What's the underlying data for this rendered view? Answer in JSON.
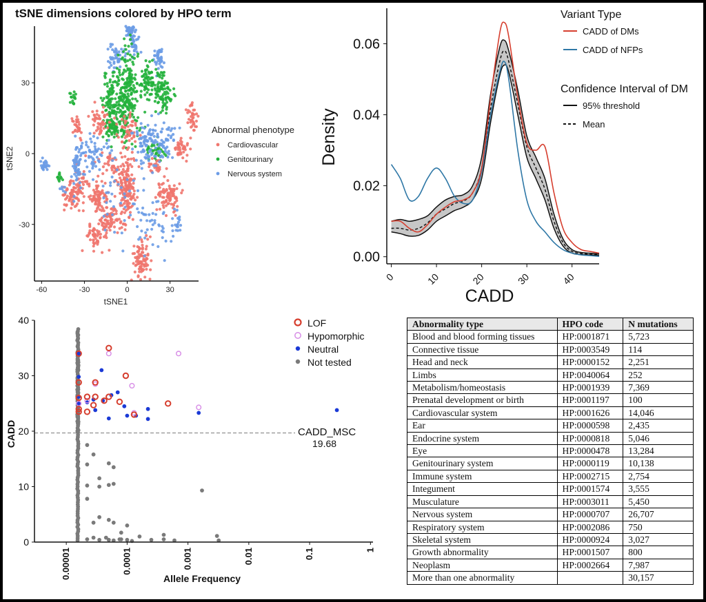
{
  "chart_data": [
    {
      "type": "scatter",
      "title": "tSNE dimensions colored by HPO term",
      "xlabel": "tSNE1",
      "ylabel": "tSNE2",
      "xlim": [
        -65,
        50
      ],
      "ylim": [
        -54,
        54
      ],
      "xticks": [
        "-60",
        "-30",
        "0",
        "30"
      ],
      "yticks": [
        "-30",
        "0",
        "30"
      ],
      "legend": {
        "title": "Abnormal phenotype",
        "position": "right",
        "entries": [
          {
            "name": "Cardiovascular",
            "color": "#f0766e"
          },
          {
            "name": "Genitourinary",
            "color": "#24b13c"
          },
          {
            "name": "Nervous system",
            "color": "#6c9ce6"
          }
        ]
      },
      "clusters": [
        {
          "group": "Nervous system",
          "x": 2,
          "y": 52,
          "sx": 1.5,
          "sy": 2,
          "n": 45
        },
        {
          "group": "Nervous system",
          "x": 5,
          "y": 46,
          "sx": 1.5,
          "sy": 2,
          "n": 30
        },
        {
          "group": "Nervous system",
          "x": -7,
          "y": 40,
          "sx": 3,
          "sy": 2.5,
          "n": 40
        },
        {
          "group": "Nervous system",
          "x": 22,
          "y": 40,
          "sx": 2,
          "sy": 2.5,
          "n": 40
        },
        {
          "group": "Nervous system",
          "x": -12,
          "y": 46,
          "sx": 1,
          "sy": 1,
          "n": 4
        },
        {
          "group": "Genitourinary",
          "x": 0,
          "y": 25,
          "sx": 4,
          "sy": 10,
          "n": 240
        },
        {
          "group": "Genitourinary",
          "x": -11,
          "y": 21,
          "sx": 3,
          "sy": 7,
          "n": 110
        },
        {
          "group": "Genitourinary",
          "x": 14,
          "y": 30,
          "sx": 3,
          "sy": 4,
          "n": 70
        },
        {
          "group": "Genitourinary",
          "x": 25,
          "y": 26,
          "sx": 3.5,
          "sy": 4,
          "n": 90
        },
        {
          "group": "Genitourinary",
          "x": -38,
          "y": 23,
          "sx": 1.2,
          "sy": 1.5,
          "n": 15
        },
        {
          "group": "Genitourinary",
          "x": -10,
          "y": 11,
          "sx": 2.5,
          "sy": 2,
          "n": 40
        },
        {
          "group": "Genitourinary",
          "x": 21,
          "y": 1,
          "sx": 4,
          "sy": 2,
          "n": 40
        },
        {
          "group": "Genitourinary",
          "x": -47,
          "y": -10,
          "sx": 1,
          "sy": 1,
          "n": 12
        },
        {
          "group": "Cardiovascular",
          "x": 0,
          "y": -15,
          "sx": 3,
          "sy": 7,
          "n": 150
        },
        {
          "group": "Cardiovascular",
          "x": -12,
          "y": -28,
          "sx": 4,
          "sy": 4,
          "n": 80
        },
        {
          "group": "Cardiovascular",
          "x": -21,
          "y": -18,
          "sx": 3,
          "sy": 3,
          "n": 70
        },
        {
          "group": "Cardiovascular",
          "x": -38,
          "y": -18,
          "sx": 4,
          "sy": 3,
          "n": 80
        },
        {
          "group": "Cardiovascular",
          "x": -23,
          "y": -35,
          "sx": 3,
          "sy": 2.5,
          "n": 50
        },
        {
          "group": "Cardiovascular",
          "x": 10,
          "y": -45,
          "sx": 3,
          "sy": 4,
          "n": 90
        },
        {
          "group": "Cardiovascular",
          "x": 28,
          "y": -18,
          "sx": 4,
          "sy": 3,
          "n": 90
        },
        {
          "group": "Cardiovascular",
          "x": 38,
          "y": 2,
          "sx": 3,
          "sy": 2,
          "n": 40
        },
        {
          "group": "Cardiovascular",
          "x": 46,
          "y": 15,
          "sx": 2,
          "sy": 3,
          "n": 40
        },
        {
          "group": "Cardiovascular",
          "x": -35,
          "y": 12,
          "sx": 2,
          "sy": 2,
          "n": 30
        },
        {
          "group": "Cardiovascular",
          "x": -20,
          "y": 14,
          "sx": 3,
          "sy": 3,
          "n": 50
        },
        {
          "group": "Cardiovascular",
          "x": 0,
          "y": 10,
          "sx": 4,
          "sy": 3,
          "n": 50
        },
        {
          "group": "Cardiovascular",
          "x": -10,
          "y": -5,
          "sx": 6,
          "sy": 4,
          "n": 50
        },
        {
          "group": "Cardiovascular",
          "x": 20,
          "y": -5,
          "sx": 3,
          "sy": 2,
          "n": 25
        },
        {
          "group": "Cardiovascular",
          "x": -32,
          "y": -10,
          "sx": 3,
          "sy": 3,
          "n": 25
        },
        {
          "group": "Nervous system",
          "x": -58,
          "y": -5,
          "sx": 1.5,
          "sy": 1.5,
          "n": 25
        },
        {
          "group": "Nervous system",
          "x": -35,
          "y": -5,
          "sx": 2,
          "sy": 5,
          "n": 50
        },
        {
          "group": "Nervous system",
          "x": -25,
          "y": 0,
          "sx": 6,
          "sy": 4,
          "n": 70
        },
        {
          "group": "Nervous system",
          "x": 15,
          "y": 5,
          "sx": 5,
          "sy": 5,
          "n": 80
        },
        {
          "group": "Nervous system",
          "x": 25,
          "y": 5,
          "sx": 5,
          "sy": 4,
          "n": 60
        },
        {
          "group": "Nervous system",
          "x": -5,
          "y": -20,
          "sx": 8,
          "sy": 8,
          "n": 40
        },
        {
          "group": "Nervous system",
          "x": 18,
          "y": -30,
          "sx": 6,
          "sy": 6,
          "n": 40
        },
        {
          "group": "Nervous system",
          "x": 35,
          "y": -30,
          "sx": 2,
          "sy": 3,
          "n": 20
        },
        {
          "group": "Nervous system",
          "x": -45,
          "y": -15,
          "sx": 1,
          "sy": 1,
          "n": 6
        }
      ]
    },
    {
      "type": "line",
      "xlabel": "CADD",
      "ylabel": "Density",
      "xlim": [
        -1,
        46
      ],
      "ylim": [
        -0.002,
        0.07
      ],
      "xticks": [
        "0",
        "10",
        "20",
        "30",
        "40"
      ],
      "yticks": [
        "0.00",
        "0.02",
        "0.04",
        "0.06"
      ],
      "legend": {
        "position": "top-right",
        "title": "Variant Type",
        "entries": [
          {
            "name": "CADD of DMs",
            "color": "#d63e2e"
          },
          {
            "name": "CADD of NFPs",
            "color": "#2e77a6"
          }
        ],
        "title2": "Confidence Interval of DM",
        "entries2": [
          {
            "name": "95% threshold",
            "style": "solid"
          },
          {
            "name": "Mean",
            "style": "dashed"
          }
        ]
      },
      "x": [
        0,
        2,
        4,
        6,
        8,
        10,
        12,
        14,
        16,
        18,
        20,
        22,
        24,
        25,
        26,
        28,
        30,
        32,
        34,
        36,
        38,
        40,
        42,
        44,
        46
      ],
      "series": [
        {
          "name": "CADD of DMs",
          "values": [
            0.01,
            0.01,
            0.008,
            0.007,
            0.009,
            0.012,
            0.014,
            0.0155,
            0.016,
            0.018,
            0.025,
            0.045,
            0.063,
            0.066,
            0.062,
            0.045,
            0.032,
            0.03,
            0.031,
            0.018,
            0.008,
            0.004,
            0.002,
            0.0015,
            0.001
          ]
        },
        {
          "name": "CADD of NFPs",
          "values": [
            0.026,
            0.022,
            0.016,
            0.017,
            0.022,
            0.025,
            0.022,
            0.017,
            0.015,
            0.016,
            0.024,
            0.04,
            0.052,
            0.055,
            0.05,
            0.03,
            0.016,
            0.01,
            0.007,
            0.004,
            0.002,
            0.001,
            0.0005,
            0.0003,
            0.0001
          ]
        },
        {
          "name": "95% threshold upper",
          "values": [
            0.01,
            0.0105,
            0.01,
            0.0105,
            0.0115,
            0.014,
            0.016,
            0.017,
            0.0175,
            0.02,
            0.028,
            0.046,
            0.059,
            0.061,
            0.058,
            0.047,
            0.034,
            0.028,
            0.022,
            0.012,
            0.005,
            0.002,
            0.0012,
            0.001,
            0.0008
          ]
        },
        {
          "name": "Mean",
          "values": [
            0.008,
            0.008,
            0.0075,
            0.008,
            0.0095,
            0.012,
            0.0135,
            0.015,
            0.0157,
            0.018,
            0.025,
            0.042,
            0.055,
            0.058,
            0.055,
            0.043,
            0.031,
            0.025,
            0.019,
            0.01,
            0.004,
            0.0015,
            0.0009,
            0.0007,
            0.0005
          ]
        },
        {
          "name": "95% threshold lower",
          "values": [
            0.007,
            0.0065,
            0.0058,
            0.006,
            0.0075,
            0.01,
            0.0115,
            0.013,
            0.014,
            0.016,
            0.022,
            0.038,
            0.051,
            0.054,
            0.052,
            0.04,
            0.028,
            0.022,
            0.016,
            0.008,
            0.003,
            0.001,
            0.0006,
            0.0005,
            0.0004
          ]
        }
      ]
    },
    {
      "type": "scatter",
      "xlabel": "Allele Frequency",
      "ylabel": "CADD",
      "xscale": "log",
      "xlim": [
        3e-06,
        1.1
      ],
      "ylim": [
        0,
        40
      ],
      "xticks": [
        "0.00001",
        "0.0001",
        "0.001",
        "0.01",
        "0.1",
        "1"
      ],
      "yticks": [
        "0",
        "10",
        "20",
        "30",
        "40"
      ],
      "threshold": {
        "value": 19.68,
        "label": "CADD_MSC",
        "value_label": "19.68"
      },
      "legend": {
        "position": "top-right",
        "entries": [
          {
            "name": "LOF",
            "color": "#d63e2e",
            "marker": "ring"
          },
          {
            "name": "Hypomorphic",
            "color": "#d78ce6",
            "marker": "ring"
          },
          {
            "name": "Neutral",
            "color": "#1b3ad6",
            "marker": "dot"
          },
          {
            "name": "Not tested",
            "color": "#7a7a7a",
            "marker": "dot"
          }
        ]
      },
      "series": [
        {
          "name": "LOF",
          "points": [
            [
              1.6e-05,
              34
            ],
            [
              1.6e-05,
              28.8
            ],
            [
              1.6e-05,
              26
            ],
            [
              1.6e-05,
              24
            ],
            [
              1.6e-05,
              23.5
            ],
            [
              2.2e-05,
              26.2
            ],
            [
              2.2e-05,
              23.5
            ],
            [
              2.8e-05,
              24.7
            ],
            [
              3e-05,
              26.2
            ],
            [
              3e-05,
              28.8
            ],
            [
              4.2e-05,
              25.5
            ],
            [
              5e-05,
              35
            ],
            [
              5e-05,
              26.2
            ],
            [
              7.5e-05,
              25.3
            ],
            [
              9.5e-05,
              30
            ],
            [
              0.00013,
              23
            ],
            [
              0.00047,
              25
            ]
          ]
        },
        {
          "name": "Hypomorphic",
          "points": [
            [
              1.6e-05,
              25
            ],
            [
              2.2e-05,
              25.5
            ],
            [
              3e-05,
              28.5
            ],
            [
              5e-05,
              34
            ],
            [
              0.00012,
              28.2
            ],
            [
              0.00013,
              23.3
            ],
            [
              0.0007,
              34
            ],
            [
              0.0015,
              24.3
            ]
          ]
        },
        {
          "name": "Neutral",
          "points": [
            [
              1.6e-05,
              34
            ],
            [
              1.6e-05,
              29.8
            ],
            [
              1.6e-05,
              26.2
            ],
            [
              1.6e-05,
              25
            ],
            [
              2.2e-05,
              25.2
            ],
            [
              2.8e-05,
              25.7
            ],
            [
              3e-05,
              23.8
            ],
            [
              3.8e-05,
              31
            ],
            [
              4e-05,
              25.5
            ],
            [
              5e-05,
              22.3
            ],
            [
              5.5e-05,
              26.5
            ],
            [
              7e-05,
              27
            ],
            [
              9e-05,
              24.5
            ],
            [
              0.0001,
              22.8
            ],
            [
              0.00014,
              22.8
            ],
            [
              0.00022,
              24
            ],
            [
              0.00022,
              22.2
            ],
            [
              0.0015,
              23.3
            ],
            [
              0.28,
              23.8
            ]
          ]
        },
        {
          "name": "Not tested",
          "points": [
            [
              2.2e-05,
              17.5
            ],
            [
              2.2e-05,
              14
            ],
            [
              2.2e-05,
              10.2
            ],
            [
              2.2e-05,
              7.8
            ],
            [
              2.2e-05,
              0.5
            ],
            [
              2.8e-05,
              15.8
            ],
            [
              2.8e-05,
              0.8
            ],
            [
              2.8e-05,
              3.5
            ],
            [
              3.5e-05,
              11.5
            ],
            [
              3.5e-05,
              10
            ],
            [
              3.5e-05,
              4.5
            ],
            [
              3.5e-05,
              0.4
            ],
            [
              4.5e-05,
              0.8
            ],
            [
              5e-05,
              14.2
            ],
            [
              5e-05,
              10.3
            ],
            [
              5e-05,
              4
            ],
            [
              5e-05,
              0.4
            ],
            [
              6e-05,
              13.5
            ],
            [
              6e-05,
              10.5
            ],
            [
              6e-05,
              3.5
            ],
            [
              6e-05,
              0.3
            ],
            [
              7.5e-05,
              0.5
            ],
            [
              8e-05,
              1.7
            ],
            [
              8e-05,
              0.5
            ],
            [
              0.0001,
              3
            ],
            [
              0.0001,
              0.4
            ],
            [
              0.00012,
              0.2
            ],
            [
              0.00016,
              1
            ],
            [
              0.00025,
              0.4
            ],
            [
              0.0004,
              1.3
            ],
            [
              0.0004,
              0.5
            ],
            [
              0.0006,
              0.3
            ],
            [
              0.0017,
              9.3
            ],
            [
              0.003,
              1.1
            ],
            [
              0.0032,
              0.3
            ]
          ]
        }
      ]
    },
    {
      "type": "table",
      "columns": [
        "Abnormality type",
        "HPO code",
        "N mutations"
      ],
      "rows": [
        [
          "Blood and blood forming tissues",
          "HP:0001871",
          "5,723"
        ],
        [
          "Connective tissue",
          "HP:0003549",
          "114"
        ],
        [
          "Head and neck",
          "HP:0000152",
          "2,251"
        ],
        [
          "Limbs",
          "HP:0040064",
          "252"
        ],
        [
          "Metabolism/homeostasis",
          "HP:0001939",
          "7,369"
        ],
        [
          "Prenatal development or birth",
          "HP:0001197",
          "100"
        ],
        [
          "Cardiovascular system",
          "HP:0001626",
          "14,046"
        ],
        [
          "Ear",
          "HP:0000598",
          "2,435"
        ],
        [
          "Endocrine system",
          "HP:0000818",
          "5,046"
        ],
        [
          "Eye",
          "HP:0000478",
          "13,284"
        ],
        [
          "Genitourinary system",
          "HP:0000119",
          "10,138"
        ],
        [
          "Immune system",
          "HP:0002715",
          "2,754"
        ],
        [
          "Integument",
          "HP:0001574",
          "3,555"
        ],
        [
          "Musculature",
          "HP:0003011",
          "5,450"
        ],
        [
          "Nervous system",
          "HP:0000707",
          "26,707"
        ],
        [
          "Respiratory system",
          "HP:0002086",
          "750"
        ],
        [
          "Skeletal system",
          "HP:0000924",
          "3,027"
        ],
        [
          "Growth abnormality",
          "HP:0001507",
          "800"
        ],
        [
          "Neoplasm",
          "HP:0002664",
          "7,987"
        ],
        [
          "More than one abnormality",
          "",
          "30,157"
        ]
      ]
    }
  ]
}
